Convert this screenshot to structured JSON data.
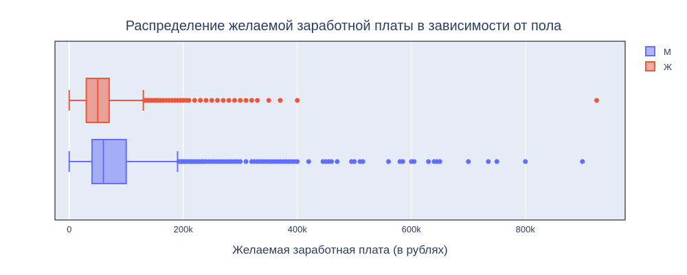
{
  "chart_data": {
    "type": "box",
    "orientation": "horizontal",
    "title": "Распределение желаемой заработной платы в зависимости от пола",
    "xlabel": "Желаемая заработная плата (в рублях)",
    "ylabel": "",
    "xlim": [
      -25000,
      975000
    ],
    "xticks": [
      {
        "value": 0,
        "label": "0"
      },
      {
        "value": 200000,
        "label": "200k"
      },
      {
        "value": 400000,
        "label": "400k"
      },
      {
        "value": 600000,
        "label": "600k"
      },
      {
        "value": 800000,
        "label": "800k"
      }
    ],
    "grid": true,
    "legend_position": "top-right",
    "series": [
      {
        "name": "М",
        "color": "#636efa",
        "fill": "rgba(99,110,250,0.5)",
        "min": 0,
        "q1": 40000,
        "median": 60000,
        "q3": 100000,
        "upper_fence": 190000,
        "outliers": [
          192000,
          195000,
          198000,
          200000,
          203000,
          206000,
          210000,
          213000,
          216000,
          220000,
          224000,
          228000,
          232000,
          236000,
          240000,
          245000,
          250000,
          255000,
          260000,
          265000,
          270000,
          275000,
          280000,
          285000,
          290000,
          295000,
          300000,
          310000,
          320000,
          325000,
          330000,
          335000,
          340000,
          345000,
          350000,
          355000,
          360000,
          365000,
          370000,
          375000,
          380000,
          385000,
          390000,
          395000,
          400000,
          420000,
          445000,
          450000,
          455000,
          460000,
          470000,
          495000,
          500000,
          510000,
          515000,
          560000,
          580000,
          585000,
          600000,
          605000,
          630000,
          640000,
          645000,
          650000,
          700000,
          735000,
          750000,
          800000,
          900000
        ]
      },
      {
        "name": "Ж",
        "color": "#ef553b",
        "fill": "rgba(239,85,59,0.5)",
        "min": 0,
        "q1": 30000,
        "median": 50000,
        "q3": 70000,
        "upper_fence": 130000,
        "outliers": [
          132000,
          135000,
          138000,
          140000,
          143000,
          146000,
          150000,
          153000,
          156000,
          160000,
          165000,
          170000,
          175000,
          180000,
          185000,
          190000,
          195000,
          200000,
          205000,
          210000,
          220000,
          230000,
          240000,
          250000,
          260000,
          270000,
          280000,
          290000,
          300000,
          310000,
          320000,
          330000,
          350000,
          370000,
          400000,
          925000
        ]
      }
    ]
  }
}
